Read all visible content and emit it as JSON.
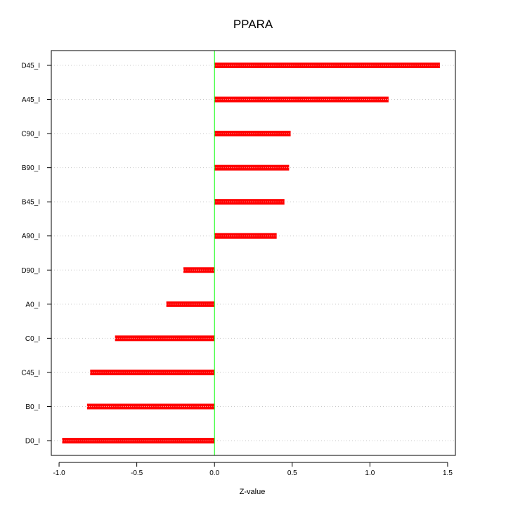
{
  "chart_data": {
    "type": "bar",
    "orientation": "horizontal",
    "title": "PPARA",
    "xlabel": "Z-value",
    "ylabel": "",
    "xlim": [
      -1.05,
      1.55
    ],
    "x_ticks": [
      "-1.0",
      "-0.5",
      "0.0",
      "0.5",
      "1.0",
      "1.5"
    ],
    "x_tick_values": [
      -1.0,
      -0.5,
      0.0,
      0.5,
      1.0,
      1.5
    ],
    "categories": [
      "D45_I",
      "A45_I",
      "C90_I",
      "B90_I",
      "B45_I",
      "A90_I",
      "D90_I",
      "A0_I",
      "C0_I",
      "C45_I",
      "B0_I",
      "D0_I"
    ],
    "values": [
      1.45,
      1.12,
      0.49,
      0.48,
      0.45,
      0.4,
      -0.2,
      -0.31,
      -0.64,
      -0.8,
      -0.82,
      -0.98
    ],
    "bar_color": "#ff0000",
    "zero_line_color": "#00ff00",
    "grid": "horizontal dotted"
  }
}
